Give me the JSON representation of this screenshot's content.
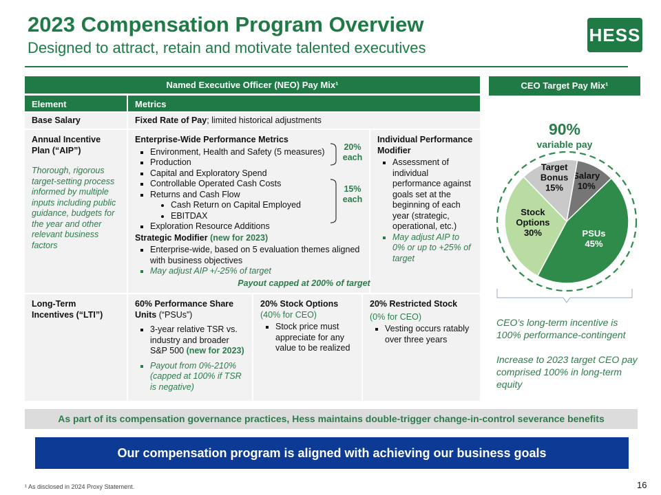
{
  "header": {
    "title": "2023 Compensation Program Overview",
    "subtitle": "Designed to attract, retain and motivate talented executives",
    "logo": "HESS"
  },
  "neo_table": {
    "caption": "Named Executive Officer (NEO) Pay Mix¹",
    "columns": [
      "Element",
      "Metrics"
    ],
    "base_salary": {
      "element": "Base Salary",
      "metric_bold": "Fixed Rate of Pay",
      "metric_rest": "; limited historical adjustments"
    },
    "aip": {
      "element": "Annual Incentive Plan (“AIP”)",
      "note": "Thorough, rigorous target-setting process informed by multiple inputs including public guidance, budgets for the year and other relevant business factors",
      "enterprise": {
        "heading": "Enterprise-Wide Performance Metrics",
        "items": [
          "Environment, Health and Safety (5 measures)",
          "Production",
          "Capital and Exploratory Spend",
          "Controllable Operated Cash Costs",
          {
            "text": "Returns and Cash Flow",
            "sub_items": [
              "Cash Return on Capital Employed",
              "EBITDAX"
            ]
          },
          "Exploration Resource Additions"
        ],
        "weights": [
          "20% each",
          "15% each"
        ]
      },
      "strategic": {
        "heading": "Strategic Modifier",
        "tag": "(new for 2023)",
        "items": [
          "Enterprise-wide, based on 5 evaluation themes aligned with business objectives"
        ],
        "note": "May adjust AIP +/-25% of target"
      },
      "individual": {
        "heading": "Individual Performance Modifier",
        "items": [
          "Assessment of individual performance against goals set at the beginning of each year (strategic, operational, etc.)"
        ],
        "note": "May adjust AIP to 0% or up to +25% of target"
      },
      "cap": "Payout capped at 200% of target"
    },
    "lti": {
      "element": "Long-Term Incentives (“LTI”)",
      "psu": {
        "heading_bold": "60% Performance Share Units",
        "heading_rest": " (“PSUs”)",
        "item": "3-year relative TSR vs. industry and broader S&P 500",
        "tag": "(new for 2023)",
        "note": "Payout from 0%-210% (capped at 100% if TSR is negative)"
      },
      "options": {
        "heading": "20% Stock Options",
        "sub": "(40% for CEO)",
        "item": "Stock price must appreciate for any value to be realized"
      },
      "rsu": {
        "heading": "20% Restricted Stock",
        "sub": "(0% for CEO)",
        "item": "Vesting occurs ratably over three years"
      }
    }
  },
  "ceo_pay_mix": {
    "caption": "CEO Target Pay Mix¹",
    "variable": "90%",
    "variable_label": "variable pay",
    "slices": [
      {
        "name": "Salary",
        "value": 10,
        "value_label": "10%",
        "color": "#767676"
      },
      {
        "name": "PSUs",
        "value": 45,
        "value_label": "45%",
        "color": "#2e8b4a"
      },
      {
        "name": "Stock Options",
        "value": 30,
        "value_label": "30%",
        "color": "#b9dca3"
      },
      {
        "name": "Target Bonus",
        "value": 15,
        "value_label": "15%",
        "color": "#c9c9c9"
      }
    ],
    "notes": [
      "CEO’s long-term incentive is 100% performance-contingent",
      "Increase to 2023 target CEO pay comprised 100% in long-term equity"
    ]
  },
  "governance_banner": "As part of its compensation governance practices, Hess maintains double-trigger change-in-control severance benefits",
  "goal_banner": "Our compensation program is aligned with achieving our business goals",
  "footnote": "¹ As disclosed in 2024 Proxy Statement.",
  "page_number": "16"
}
